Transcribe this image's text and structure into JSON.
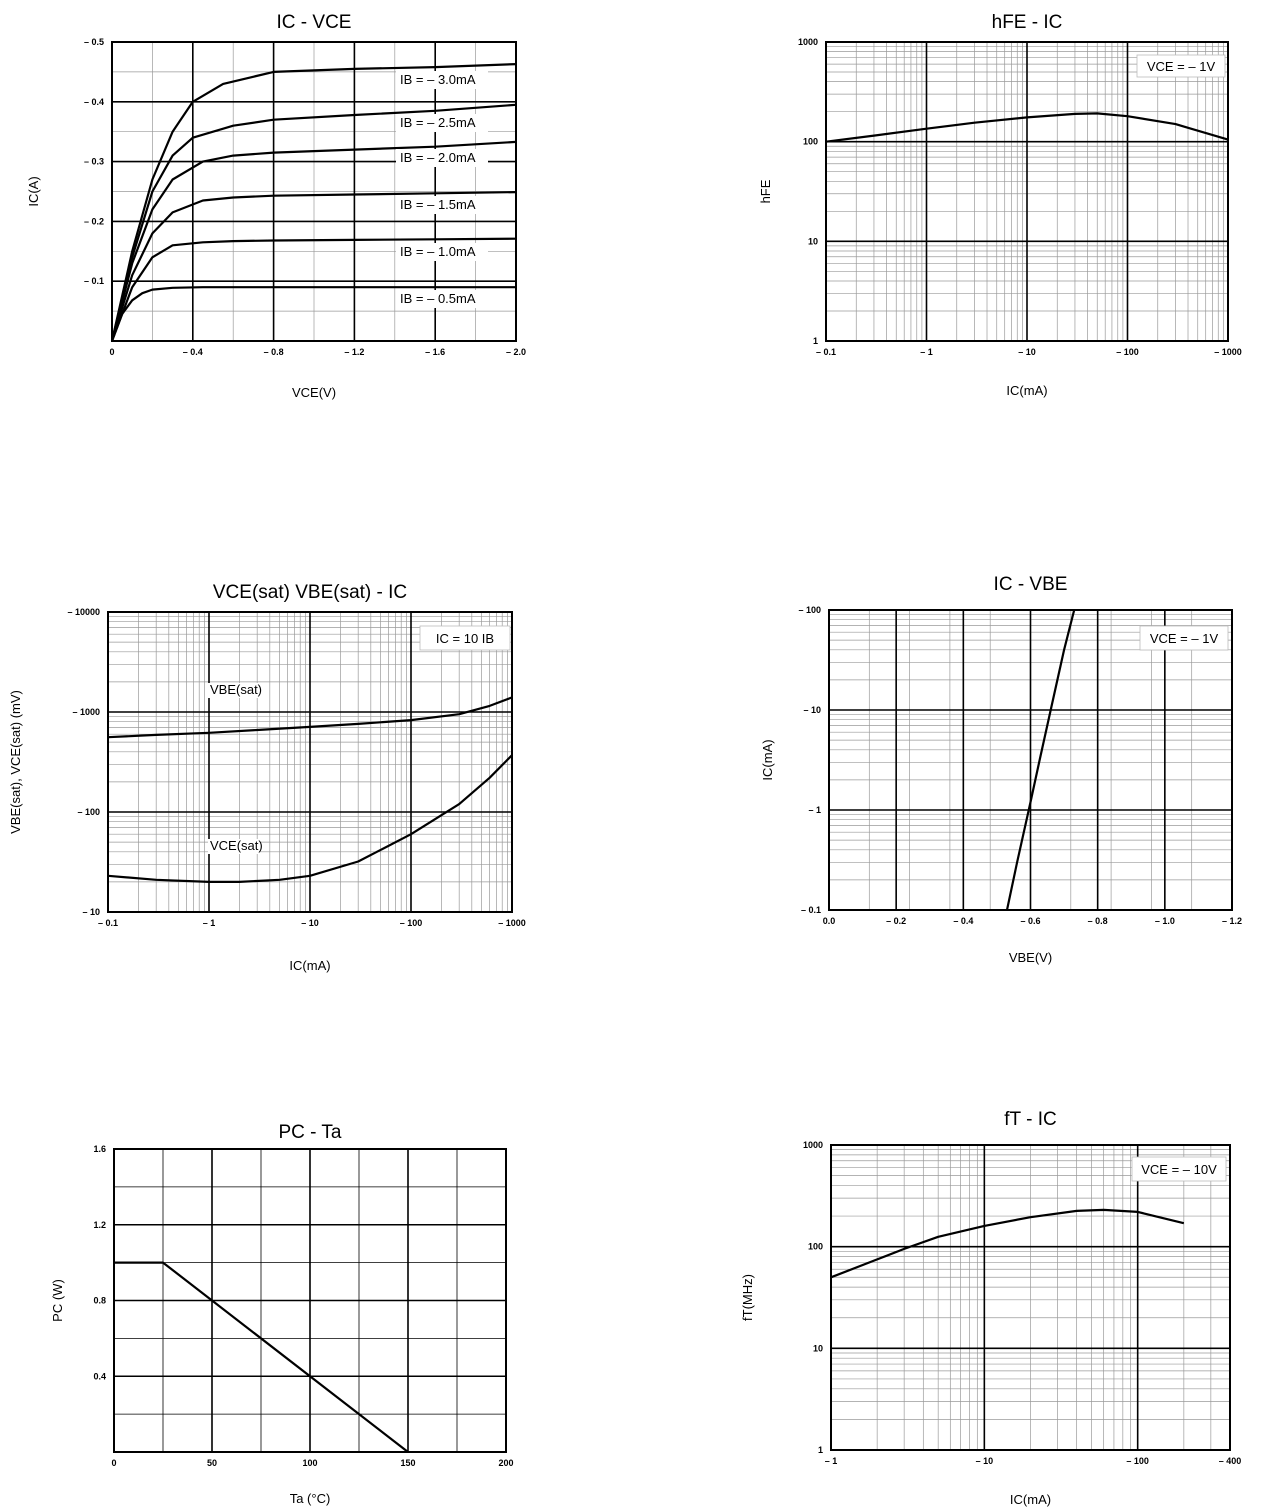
{
  "chart_data": [
    {
      "id": "ic_vce",
      "type": "line",
      "title": "IC - VCE",
      "xlabel": "VCE(V)",
      "ylabel": "IC(A)",
      "xlim": [
        0,
        -2.0
      ],
      "ylim": [
        0,
        -0.5
      ],
      "x_ticks": [
        0,
        -0.4,
        -0.8,
        -1.2,
        -1.6,
        -2.0
      ],
      "x_tick_labels": [
        "0",
        "– 0.4",
        "– 0.8",
        "– 1.2",
        "– 1.6",
        "– 2.0"
      ],
      "y_ticks": [
        -0.1,
        -0.2,
        -0.3,
        -0.4,
        -0.5
      ],
      "y_tick_labels": [
        "– 0.1",
        "– 0.2",
        "– 0.3",
        "– 0.4",
        "– 0.5"
      ],
      "grid": true,
      "series": [
        {
          "name": "IB = – 3.0mA",
          "x": [
            0,
            -0.1,
            -0.2,
            -0.3,
            -0.4,
            -0.55,
            -0.8,
            -1.2,
            -1.6,
            -2.0
          ],
          "y": [
            0,
            -0.15,
            -0.27,
            -0.35,
            -0.4,
            -0.43,
            -0.45,
            -0.455,
            -0.458,
            -0.463
          ]
        },
        {
          "name": "IB = – 2.5mA",
          "x": [
            0,
            -0.1,
            -0.2,
            -0.3,
            -0.4,
            -0.6,
            -0.8,
            -1.2,
            -1.6,
            -2.0
          ],
          "y": [
            0,
            -0.14,
            -0.25,
            -0.31,
            -0.34,
            -0.36,
            -0.37,
            -0.378,
            -0.385,
            -0.395
          ]
        },
        {
          "name": "IB = – 2.0mA",
          "x": [
            0,
            -0.1,
            -0.2,
            -0.3,
            -0.45,
            -0.6,
            -0.8,
            -1.2,
            -1.6,
            -2.0
          ],
          "y": [
            0,
            -0.13,
            -0.22,
            -0.27,
            -0.3,
            -0.31,
            -0.315,
            -0.32,
            -0.325,
            -0.333
          ]
        },
        {
          "name": "IB = – 1.5mA",
          "x": [
            0,
            -0.1,
            -0.2,
            -0.3,
            -0.45,
            -0.6,
            -0.8,
            -1.2,
            -1.6,
            -2.0
          ],
          "y": [
            0,
            -0.11,
            -0.18,
            -0.215,
            -0.235,
            -0.24,
            -0.243,
            -0.245,
            -0.247,
            -0.249
          ]
        },
        {
          "name": "IB = – 1.0mA",
          "x": [
            0,
            -0.1,
            -0.2,
            -0.3,
            -0.45,
            -0.6,
            -0.8,
            -1.2,
            -1.6,
            -2.0
          ],
          "y": [
            0,
            -0.09,
            -0.14,
            -0.16,
            -0.165,
            -0.167,
            -0.168,
            -0.169,
            -0.17,
            -0.171
          ]
        },
        {
          "name": "IB = – 0.5mA",
          "x": [
            0,
            -0.05,
            -0.1,
            -0.15,
            -0.2,
            -0.3,
            -0.45,
            -0.8,
            -1.2,
            -1.6,
            -2.0
          ],
          "y": [
            0,
            -0.045,
            -0.068,
            -0.08,
            -0.086,
            -0.089,
            -0.09,
            -0.09,
            -0.09,
            -0.09,
            -0.09
          ]
        }
      ]
    },
    {
      "id": "hfe_ic",
      "type": "line",
      "title": "hFE - IC",
      "xlabel": "IC(mA)",
      "ylabel": "hFE",
      "x_scale": "log",
      "y_scale": "log",
      "xlim": [
        -0.1,
        -1000
      ],
      "ylim": [
        1,
        1000
      ],
      "x_ticks": [
        -0.1,
        -1,
        -10,
        -100,
        -1000
      ],
      "x_tick_labels": [
        "– 0.1",
        "– 1",
        "– 10",
        "– 100",
        "– 1000"
      ],
      "y_ticks": [
        1,
        10,
        100,
        1000
      ],
      "y_tick_labels": [
        "1",
        "10",
        "100",
        "1000"
      ],
      "grid": true,
      "annotation": "VCE = – 1V",
      "series": [
        {
          "x": [
            -0.1,
            -0.3,
            -1,
            -3,
            -10,
            -30,
            -50,
            -100,
            -300,
            -1000
          ],
          "y": [
            100,
            115,
            135,
            155,
            175,
            190,
            192,
            180,
            150,
            105
          ]
        }
      ]
    },
    {
      "id": "vsat_ic",
      "type": "line",
      "title": "VCE(sat) VBE(sat) - IC",
      "xlabel": "IC(mA)",
      "ylabel": "VBE(sat), VCE(sat) (mV)",
      "x_scale": "log",
      "y_scale": "log",
      "xlim": [
        -0.1,
        -1000
      ],
      "ylim": [
        10,
        10000
      ],
      "x_ticks": [
        -0.1,
        -1,
        -10,
        -100,
        -1000
      ],
      "x_tick_labels": [
        "– 0.1",
        "– 1",
        "– 10",
        "– 100",
        "– 1000"
      ],
      "y_ticks": [
        10,
        100,
        1000,
        10000
      ],
      "y_tick_labels": [
        "– 10",
        "– 100",
        "– 1000",
        "– 10000"
      ],
      "grid": true,
      "annotation": "IC = 10 IB",
      "series": [
        {
          "name": "VBE(sat)",
          "x": [
            -0.1,
            -0.3,
            -1,
            -3,
            -10,
            -30,
            -100,
            -300,
            -600,
            -1000
          ],
          "y": [
            560,
            590,
            620,
            660,
            710,
            760,
            830,
            950,
            1150,
            1400
          ]
        },
        {
          "name": "VCE(sat)",
          "x": [
            -0.1,
            -0.3,
            -1,
            -2,
            -5,
            -10,
            -30,
            -100,
            -300,
            -600,
            -1000
          ],
          "y": [
            23,
            21,
            20,
            20,
            21,
            23,
            32,
            60,
            120,
            220,
            370
          ]
        }
      ]
    },
    {
      "id": "ic_vbe",
      "type": "line",
      "title": "IC - VBE",
      "xlabel": "VBE(V)",
      "ylabel": "IC(mA)",
      "y_scale": "log",
      "xlim": [
        0,
        -1.2
      ],
      "ylim": [
        0.1,
        100
      ],
      "x_ticks": [
        0,
        -0.2,
        -0.4,
        -0.6,
        -0.8,
        -1.0,
        -1.2
      ],
      "x_tick_labels": [
        "0.0",
        "– 0.2",
        "– 0.4",
        "– 0.6",
        "– 0.8",
        "– 1.0",
        "– 1.2"
      ],
      "y_ticks": [
        0.1,
        1,
        10,
        100
      ],
      "y_tick_labels": [
        "– 0.1",
        "– 1",
        "– 10",
        "– 100"
      ],
      "grid": true,
      "annotation": "VCE = – 1V",
      "series": [
        {
          "x": [
            -0.53,
            -0.56,
            -0.6,
            -0.63,
            -0.66,
            -0.7,
            -0.73
          ],
          "y": [
            0.1,
            0.3,
            1.2,
            3.5,
            10,
            40,
            100
          ]
        }
      ]
    },
    {
      "id": "pc_ta",
      "type": "line",
      "title": "PC - Ta",
      "xlabel": "Ta (°C)",
      "ylabel": "PC (W)",
      "xlim": [
        0,
        200
      ],
      "ylim": [
        0,
        1.6
      ],
      "x_ticks": [
        0,
        50,
        100,
        150,
        200
      ],
      "x_tick_labels": [
        "0",
        "50",
        "100",
        "150",
        "200"
      ],
      "y_ticks": [
        0.4,
        0.8,
        1.2,
        1.6
      ],
      "y_tick_labels": [
        "0.4",
        "0.8",
        "1.2",
        "1.6"
      ],
      "grid": true,
      "series": [
        {
          "x": [
            0,
            25,
            150
          ],
          "y": [
            1.0,
            1.0,
            0
          ]
        }
      ]
    },
    {
      "id": "ft_ic",
      "type": "line",
      "title": "fT - IC",
      "xlabel": "IC(mA)",
      "ylabel": "fT(MHz)",
      "x_scale": "log",
      "y_scale": "log",
      "xlim": [
        -1,
        -400
      ],
      "ylim": [
        1,
        1000
      ],
      "x_ticks": [
        -1,
        -10,
        -100,
        -400
      ],
      "x_tick_labels": [
        "– 1",
        "– 10",
        "– 100",
        "– 400"
      ],
      "y_ticks": [
        1,
        10,
        100,
        1000
      ],
      "y_tick_labels": [
        "1",
        "10",
        "100",
        "1000"
      ],
      "grid": true,
      "annotation": "VCE = – 10V",
      "series": [
        {
          "x": [
            -1,
            -2,
            -3,
            -5,
            -10,
            -20,
            -40,
            -60,
            -100,
            -200
          ],
          "y": [
            50,
            75,
            95,
            125,
            160,
            195,
            225,
            230,
            220,
            170
          ]
        }
      ]
    }
  ]
}
